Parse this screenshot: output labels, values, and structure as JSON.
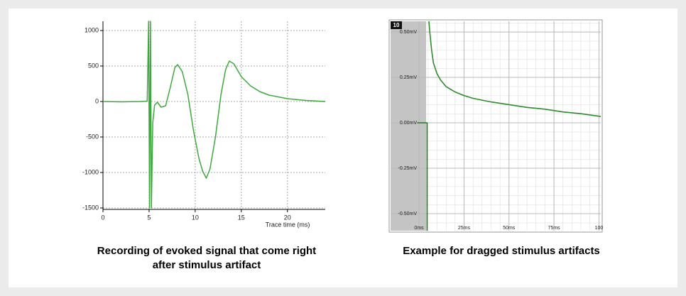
{
  "chart_data": [
    {
      "type": "line",
      "caption": "Recording of evoked signal that come right after stimulus artifact",
      "x_label": "Trace time (ms)",
      "xlim": [
        0,
        24.1
      ],
      "ylim": [
        -1520,
        1130
      ],
      "xticks": [
        0,
        5,
        10,
        15,
        20
      ],
      "yticks": [
        1000,
        500,
        0,
        -500,
        -1000,
        -1500
      ],
      "grid": true,
      "series": [
        {
          "color": "#3ea83e",
          "x": [
            0,
            2,
            4,
            4.8,
            4.95,
            5.05,
            5.15,
            5.25,
            5.4,
            5.6,
            5.9,
            6.3,
            6.8,
            7.3,
            7.8,
            8.1,
            8.6,
            9.2,
            9.8,
            10.4,
            10.8,
            11.2,
            11.6,
            12.2,
            12.8,
            13.3,
            13.7,
            14.2,
            15,
            16,
            17,
            18,
            20,
            22,
            24.1
          ],
          "values": [
            0,
            -5,
            0,
            5,
            1130,
            -1500,
            1130,
            -1500,
            -300,
            -50,
            -10,
            -80,
            -60,
            200,
            480,
            520,
            420,
            100,
            -400,
            -800,
            -980,
            -1080,
            -950,
            -500,
            100,
            450,
            570,
            530,
            350,
            220,
            140,
            90,
            40,
            15,
            0
          ]
        }
      ]
    },
    {
      "type": "line",
      "caption": "Example for dragged stimulus artifacts",
      "badge": "10",
      "xlim": [
        -15.8,
        101
      ],
      "ylim": [
        -0.594,
        0.559
      ],
      "xticks": [
        {
          "value": 0,
          "label": "0ms"
        },
        {
          "value": 25,
          "label": "25ms"
        },
        {
          "value": 50,
          "label": "50ms"
        },
        {
          "value": 75,
          "label": "75ms"
        },
        {
          "value": 100,
          "label": "100"
        }
      ],
      "yticks": [
        {
          "value": 0.5,
          "label": "0.50mV"
        },
        {
          "value": 0.25,
          "label": "0.25mV"
        },
        {
          "value": 0,
          "label": "0.00mV"
        },
        {
          "value": -0.25,
          "label": "-0.25mV"
        },
        {
          "value": -0.5,
          "label": "-0.50mV"
        }
      ],
      "grid": true,
      "series": [
        {
          "color": "#1f7a1f",
          "x": [
            -1,
            4,
            4.5,
            4.5
          ],
          "values": [
            0,
            0,
            0,
            -0.594
          ]
        },
        {
          "color": "#2e8b2e",
          "x": [
            5.5,
            6,
            7,
            8,
            10,
            12,
            15,
            20,
            25,
            30,
            40,
            50,
            60,
            70,
            80,
            90,
            101
          ],
          "values": [
            0.559,
            0.5,
            0.4,
            0.33,
            0.27,
            0.235,
            0.2,
            0.17,
            0.15,
            0.135,
            0.115,
            0.1,
            0.085,
            0.075,
            0.06,
            0.05,
            0.035
          ]
        }
      ]
    }
  ]
}
